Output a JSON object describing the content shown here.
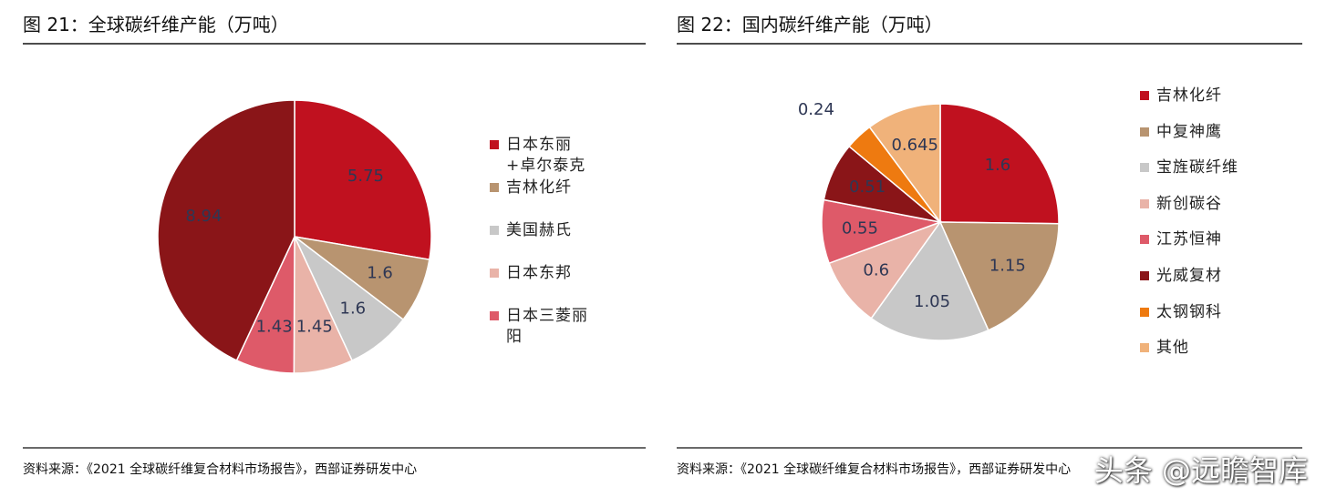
{
  "chart_data": [
    {
      "type": "pie",
      "title": "图 21：全球碳纤维产能（万吨）",
      "categories": [
        "日本东丽+卓尔泰克",
        "吉林化纤",
        "美国赫氏",
        "日本东邦",
        "日本三菱丽阳",
        null
      ],
      "values": [
        5.75,
        1.6,
        1.6,
        1.45,
        1.43,
        8.94
      ],
      "colors": [
        "#c0111f",
        "#b89470",
        "#c8c8c8",
        "#e9b3a8",
        "#de5a69",
        "#8a1518"
      ],
      "source": "资料来源：《2021 全球碳纤维复合材料市场报告》，西部证券研发中心"
    },
    {
      "type": "pie",
      "title": "图 22：国内碳纤维产能（万吨）",
      "categories": [
        "吉林化纤",
        "中复神鹰",
        "宝旌碳纤维",
        "新创碳谷",
        "江苏恒神",
        "光威复材",
        "太钢钢科",
        "其他"
      ],
      "values": [
        1.6,
        1.15,
        1.05,
        0.6,
        0.55,
        0.51,
        0.24,
        0.645
      ],
      "colors": [
        "#c0111f",
        "#b89470",
        "#c8c8c8",
        "#e9b3a8",
        "#de5a69",
        "#8a1518",
        "#ee7a10",
        "#f0b27a"
      ],
      "source": "资料来源：《2021 全球碳纤维复合材料市场报告》，西部证券研发中心"
    }
  ],
  "watermark": "头条 @远瞻智库"
}
